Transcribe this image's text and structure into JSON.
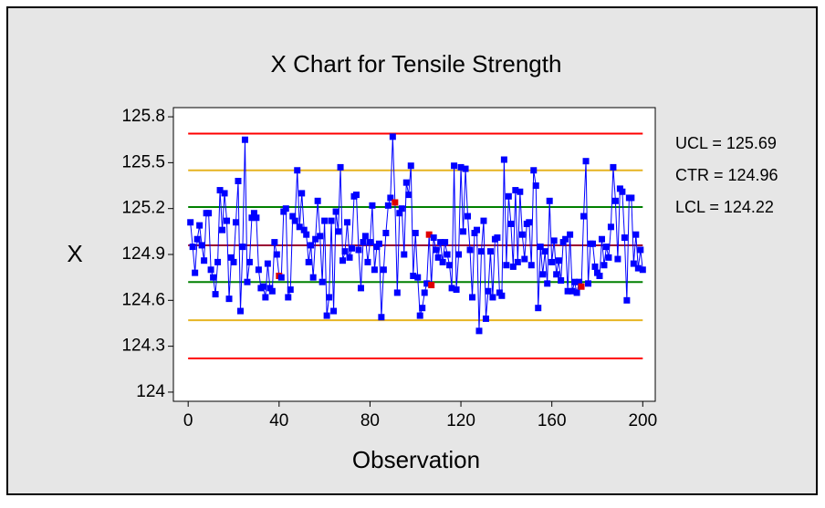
{
  "chart_data": {
    "type": "control",
    "title": "X Chart for Tensile Strength",
    "x_label": "Observation",
    "y_label": "X",
    "xlim": [
      -6.5,
      205.5
    ],
    "ylim": [
      123.94,
      125.86
    ],
    "xticks": [
      0,
      40,
      80,
      120,
      160,
      200
    ],
    "yticks": [
      124,
      124.3,
      124.6,
      124.9,
      125.2,
      125.5,
      125.8
    ],
    "control_limits": [
      {
        "value": 125.69,
        "label": "UCL = 125.69",
        "color": "#ff0000"
      },
      {
        "value": 124.96,
        "label": "CTR = 124.96",
        "color": "#990033"
      },
      {
        "value": 124.22,
        "label": "LCL = 124.22",
        "color": "#ff0000"
      }
    ],
    "zone_lines": [
      {
        "value": 125.45,
        "color": "#e6b422"
      },
      {
        "value": 125.21,
        "color": "#008000"
      },
      {
        "value": 124.72,
        "color": "#008000"
      },
      {
        "value": 124.47,
        "color": "#e6b422"
      }
    ],
    "series": [
      {
        "name": "X",
        "color": "#0000ff",
        "flag_color": "#e00000",
        "flagged": [
          39,
          90,
          105,
          106,
          172
        ],
        "x": [
          1,
          2,
          3,
          4,
          5,
          6,
          7,
          8,
          9,
          10,
          11,
          12,
          13,
          14,
          15,
          16,
          17,
          18,
          19,
          20,
          21,
          22,
          23,
          24,
          25,
          26,
          27,
          28,
          29,
          30,
          31,
          32,
          33,
          34,
          35,
          36,
          37,
          38,
          39,
          40,
          41,
          42,
          43,
          44,
          45,
          46,
          47,
          48,
          49,
          50,
          51,
          52,
          53,
          54,
          55,
          56,
          57,
          58,
          59,
          60,
          61,
          62,
          63,
          64,
          65,
          66,
          67,
          68,
          69,
          70,
          71,
          72,
          73,
          74,
          75,
          76,
          77,
          78,
          79,
          80,
          81,
          82,
          83,
          84,
          85,
          86,
          87,
          88,
          89,
          90,
          91,
          92,
          93,
          94,
          95,
          96,
          97,
          98,
          99,
          100,
          101,
          102,
          103,
          104,
          105,
          106,
          107,
          108,
          109,
          110,
          111,
          112,
          113,
          114,
          115,
          116,
          117,
          118,
          119,
          120,
          121,
          122,
          123,
          124,
          125,
          126,
          127,
          128,
          129,
          130,
          131,
          132,
          133,
          134,
          135,
          136,
          137,
          138,
          139,
          140,
          141,
          142,
          143,
          144,
          145,
          146,
          147,
          148,
          149,
          150,
          151,
          152,
          153,
          154,
          155,
          156,
          157,
          158,
          159,
          160,
          161,
          162,
          163,
          164,
          165,
          166,
          167,
          168,
          169,
          170,
          171,
          172,
          173,
          174,
          175,
          176,
          177,
          178,
          179,
          180,
          181,
          182,
          183,
          184,
          185,
          186,
          187,
          188,
          189,
          190,
          191,
          192,
          193,
          194,
          195,
          196,
          197,
          198,
          199,
          200
        ],
        "values": [
          125.11,
          124.95,
          124.78,
          125.0,
          125.09,
          124.96,
          124.86,
          125.17,
          125.17,
          124.8,
          124.75,
          124.64,
          124.85,
          125.32,
          125.06,
          125.3,
          125.12,
          124.61,
          124.88,
          124.85,
          125.11,
          125.38,
          124.53,
          124.95,
          125.65,
          124.72,
          124.85,
          125.14,
          125.17,
          125.14,
          124.8,
          124.68,
          124.69,
          124.62,
          124.84,
          124.68,
          124.66,
          124.98,
          124.9,
          124.76,
          124.75,
          125.18,
          125.2,
          124.62,
          124.67,
          125.15,
          125.12,
          125.45,
          125.08,
          125.3,
          125.06,
          125.03,
          124.85,
          124.96,
          124.75,
          125.0,
          125.25,
          125.02,
          124.72,
          125.12,
          124.5,
          124.62,
          125.12,
          124.53,
          125.18,
          125.05,
          125.47,
          124.86,
          124.92,
          125.11,
          124.88,
          124.94,
          125.28,
          125.29,
          124.93,
          124.68,
          124.98,
          125.02,
          124.85,
          124.98,
          125.22,
          124.8,
          124.95,
          124.97,
          124.49,
          124.8,
          125.04,
          125.22,
          125.27,
          125.67,
          125.24,
          124.65,
          125.17,
          125.2,
          124.9,
          125.37,
          125.29,
          125.48,
          124.76,
          125.04,
          124.75,
          124.5,
          124.55,
          124.65,
          124.71,
          125.03,
          124.7,
          125.01,
          124.93,
          124.88,
          124.98,
          124.85,
          124.98,
          124.9,
          124.83,
          124.68,
          125.48,
          124.67,
          124.9,
          125.47,
          125.05,
          125.46,
          125.15,
          124.93,
          124.62,
          125.04,
          125.06,
          124.4,
          124.92,
          125.12,
          124.48,
          124.66,
          124.92,
          124.62,
          125.0,
          125.01,
          124.65,
          124.63,
          125.52,
          124.83,
          125.28,
          125.1,
          124.82,
          125.32,
          124.85,
          125.31,
          125.03,
          124.87,
          125.1,
          125.11,
          124.83,
          125.45,
          125.35,
          124.55,
          124.95,
          124.77,
          124.92,
          124.71,
          125.25,
          124.85,
          124.99,
          124.77,
          124.86,
          124.73,
          124.98,
          125.0,
          124.66,
          125.03,
          124.66,
          124.72,
          124.65,
          124.72,
          124.69,
          125.15,
          125.51,
          124.71,
          124.97,
          124.97,
          124.82,
          124.78,
          124.76,
          125.0,
          124.83,
          124.95,
          124.88,
          125.08,
          125.47,
          125.25,
          124.87,
          125.33,
          125.31,
          125.01,
          124.6,
          125.27,
          125.27,
          124.84,
          125.03,
          124.81,
          124.93,
          124.8
        ]
      }
    ]
  }
}
